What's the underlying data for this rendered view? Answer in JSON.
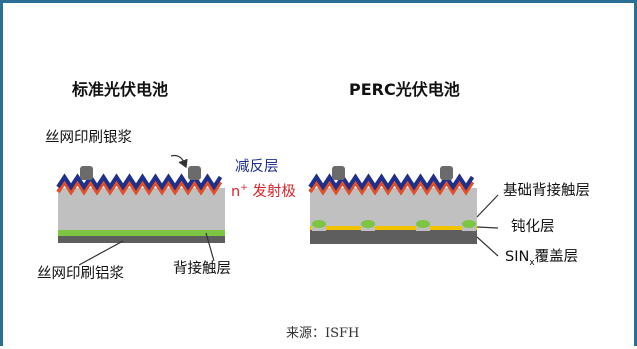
{
  "colors": {
    "border": "#2a6f95",
    "silicon": "#c0c0c0",
    "antireflection": "#1f2f8a",
    "emitter": "#e2502a",
    "back_contact": "#7ec544",
    "passivation": "#f2c400",
    "electrode": "#6b6b6b"
  },
  "standard": {
    "title": "标准光伏电池",
    "silver_paste_label": "丝网印刷银浆",
    "aluminum_paste_label": "丝网印刷铝浆",
    "back_contact_label": "背接触层"
  },
  "middle": {
    "antireflection_label": "减反层",
    "emitter_label_n": "n",
    "emitter_label_sup": "+",
    "emitter_label_rest": " 发射极"
  },
  "perc": {
    "title": "PERC光伏电池",
    "base_back_contact_label": "基础背接触层",
    "passivation_label": "钝化层",
    "sinx_label_main": "SIN",
    "sinx_label_sub": "x",
    "sinx_label_rest": "覆盖层"
  },
  "source": {
    "text": "来源：ISFH"
  }
}
